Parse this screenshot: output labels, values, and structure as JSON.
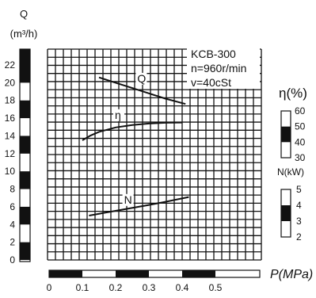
{
  "chart_data": {
    "type": "line",
    "model_label": "KCB-300",
    "speed_label": "n=960r/min",
    "viscosity_label": "v=40cSt",
    "x_axis": {
      "label": "P(MPa)",
      "ticks": [
        "0",
        "0.1",
        "0.2",
        "0.3",
        "0.4",
        "0.5"
      ],
      "range": [
        0,
        0.5
      ]
    },
    "q_axis": {
      "label_line1": "Q",
      "label_line2": "(m³/h)",
      "ticks": [
        "0",
        "2",
        "4",
        "6",
        "8",
        "10",
        "12",
        "14",
        "16",
        "18",
        "20",
        "22"
      ],
      "range": [
        0,
        22
      ]
    },
    "eta_axis": {
      "label": "η(%)",
      "ticks": [
        "30",
        "40",
        "50",
        "60"
      ],
      "range": [
        30,
        60
      ]
    },
    "n_axis": {
      "label": "N(kW)",
      "ticks": [
        "2",
        "3",
        "4",
        "5"
      ],
      "range": [
        2,
        5
      ]
    },
    "grid": true,
    "series": [
      {
        "name": "Q",
        "axis": "q",
        "points": [
          [
            0.15,
            20.6
          ],
          [
            0.2,
            20.0
          ],
          [
            0.25,
            19.4
          ],
          [
            0.3,
            18.8
          ],
          [
            0.35,
            18.2
          ],
          [
            0.41,
            17.6
          ]
        ]
      },
      {
        "name": "η",
        "axis": "eta",
        "points": [
          [
            0.1,
            41.2
          ],
          [
            0.125,
            44.3
          ],
          [
            0.15,
            46.6
          ],
          [
            0.2,
            49.4
          ],
          [
            0.25,
            51.0
          ],
          [
            0.3,
            51.9
          ],
          [
            0.35,
            52.4
          ],
          [
            0.4,
            52.6
          ]
        ]
      },
      {
        "name": "N",
        "axis": "n",
        "points": [
          [
            0.12,
            3.35
          ],
          [
            0.2,
            3.65
          ],
          [
            0.3,
            4.02
          ],
          [
            0.35,
            4.22
          ],
          [
            0.42,
            4.52
          ]
        ]
      }
    ]
  }
}
